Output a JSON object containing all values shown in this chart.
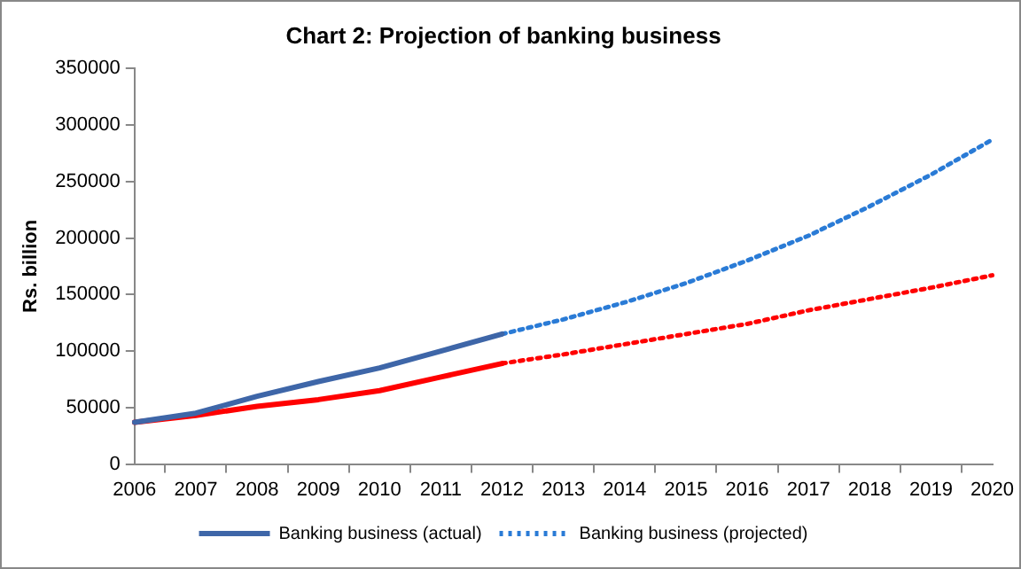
{
  "chart_data": {
    "type": "line",
    "title": "Chart 2: Projection of banking business",
    "ylabel": "Rs. billion",
    "categories": [
      "2006",
      "2007",
      "2008",
      "2009",
      "2010",
      "2011",
      "2012",
      "2013",
      "2014",
      "2015",
      "2016",
      "2017",
      "2018",
      "2019",
      "2020"
    ],
    "series": [
      {
        "name": "Banking business (actual)",
        "color": "#3e66a8",
        "line_style": "solid",
        "values": [
          37000,
          45000,
          60000,
          73000,
          85000,
          100000,
          115000,
          null,
          null,
          null,
          null,
          null,
          null,
          null,
          null
        ]
      },
      {
        "name": "Banking business (projected)",
        "color": "#2a7bd6",
        "line_style": "dotted",
        "values": [
          null,
          null,
          null,
          null,
          null,
          null,
          115000,
          128000,
          143000,
          160000,
          180000,
          202000,
          228000,
          256000,
          287000
        ]
      },
      {
        "color": "#ff0000",
        "line_style": "solid",
        "values": [
          37000,
          43000,
          51000,
          57000,
          65000,
          77000,
          89000,
          null,
          null,
          null,
          null,
          null,
          null,
          null,
          null
        ]
      },
      {
        "color": "#ff0000",
        "line_style": "dotted",
        "values": [
          null,
          null,
          null,
          null,
          null,
          null,
          89000,
          97000,
          106000,
          115000,
          124000,
          136000,
          146000,
          156000,
          167000
        ]
      }
    ],
    "ylim": [
      0,
      350000
    ],
    "yticks": [
      0,
      50000,
      100000,
      150000,
      200000,
      250000,
      300000,
      350000
    ],
    "grid": false,
    "legend": "bottom",
    "marker": "none"
  }
}
